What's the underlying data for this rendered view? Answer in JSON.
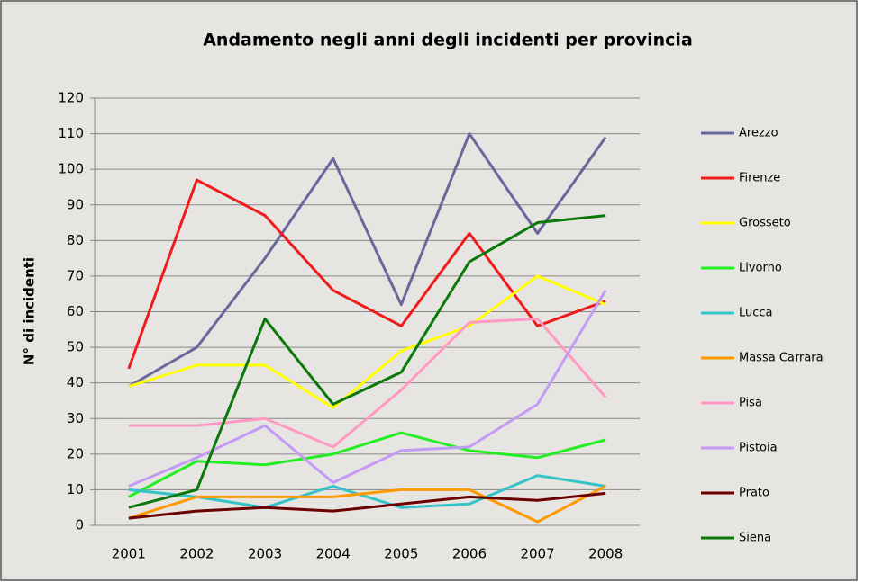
{
  "chart_data": {
    "type": "line",
    "title": "Andamento negli anni degli incidenti per provincia",
    "y_label": "N° di incidenti",
    "categories": [
      "2001",
      "2002",
      "2003",
      "2004",
      "2005",
      "2006",
      "2007",
      "2008"
    ],
    "ylim": [
      0,
      120
    ],
    "yticks": [
      0,
      10,
      20,
      30,
      40,
      50,
      60,
      70,
      80,
      90,
      100,
      110,
      120
    ],
    "grid": true,
    "legend": "right",
    "series": [
      {
        "name": "Arezzo",
        "color": "#68689a",
        "values": [
          39,
          50,
          75,
          103,
          62,
          110,
          82,
          109
        ]
      },
      {
        "name": "Firenze",
        "color": "#ee1c1c",
        "values": [
          44,
          97,
          87,
          66,
          56,
          82,
          56,
          63
        ]
      },
      {
        "name": "Grosseto",
        "color": "#ffff00",
        "values": [
          39,
          45,
          45,
          33,
          49,
          56,
          70,
          62
        ]
      },
      {
        "name": "Livorno",
        "color": "#22ee22",
        "values": [
          8,
          18,
          17,
          20,
          26,
          21,
          19,
          24
        ]
      },
      {
        "name": "Lucca",
        "color": "#33c3c8",
        "values": [
          10,
          8,
          5,
          11,
          5,
          6,
          14,
          11
        ]
      },
      {
        "name": "Massa Carrara",
        "color": "#ff9900",
        "values": [
          2,
          8,
          8,
          8,
          10,
          10,
          1,
          11
        ]
      },
      {
        "name": "Pisa",
        "color": "#ff99c4",
        "values": [
          28,
          28,
          30,
          22,
          38,
          57,
          58,
          36
        ]
      },
      {
        "name": "Pistoia",
        "color": "#c39bf5",
        "values": [
          11,
          19,
          28,
          12,
          21,
          22,
          34,
          66
        ]
      },
      {
        "name": "Prato",
        "color": "#6b0000",
        "values": [
          2,
          4,
          5,
          4,
          6,
          8,
          7,
          9
        ]
      },
      {
        "name": "Siena",
        "color": "#0a780a",
        "values": [
          5,
          10,
          58,
          34,
          43,
          74,
          85,
          87
        ]
      }
    ]
  }
}
